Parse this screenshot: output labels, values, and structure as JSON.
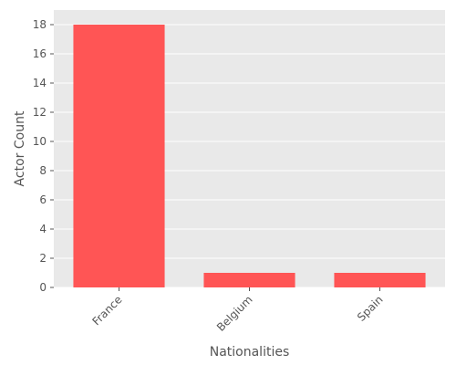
{
  "chart_data": {
    "type": "bar",
    "categories": [
      "France",
      "Belgium",
      "Spain"
    ],
    "values": [
      18,
      1,
      1
    ],
    "xlabel": "Nationalities",
    "ylabel": "Actor Count",
    "ylim": [
      0,
      19
    ],
    "yticks": [
      0,
      2,
      4,
      6,
      8,
      10,
      12,
      14,
      16,
      18
    ],
    "grid": true,
    "legend": "none",
    "colors": {
      "bar": "#ff5555",
      "plot_background": "#e9e9e9",
      "grid": "#ffffff",
      "text": "#555555"
    }
  }
}
